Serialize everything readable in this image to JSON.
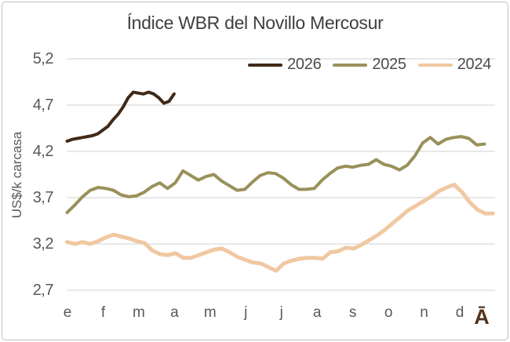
{
  "chart_data": {
    "type": "line",
    "title": "Índice WBR del Novillo Mercosur",
    "ylabel": "US$/k carcasa",
    "xlabel": "",
    "ylim": [
      2.7,
      5.2
    ],
    "y_ticks": [
      "5,2",
      "4,7",
      "4,2",
      "3,7",
      "3,2",
      "2,7"
    ],
    "y_tick_values": [
      5.2,
      4.7,
      4.2,
      3.7,
      3.2,
      2.7
    ],
    "x_tick_labels": [
      "e",
      "f",
      "m",
      "a",
      "m",
      "j",
      "j",
      "a",
      "s",
      "o",
      "n",
      "d"
    ],
    "grid": "horizontal",
    "legend_position": "top-right",
    "series": [
      {
        "name": "2026",
        "color": "#402a18",
        "span": [
          0,
          0.25
        ],
        "values": [
          4.31,
          4.33,
          4.34,
          4.35,
          4.36,
          4.37,
          4.39,
          4.43,
          4.47,
          4.54,
          4.6,
          4.68,
          4.78,
          4.84,
          4.83,
          4.82,
          4.84,
          4.82,
          4.78,
          4.72,
          4.74,
          4.82
        ]
      },
      {
        "name": "2025",
        "color": "#99915a",
        "span": [
          0,
          0.975
        ],
        "values": [
          3.54,
          3.62,
          3.71,
          3.78,
          3.81,
          3.8,
          3.78,
          3.73,
          3.71,
          3.72,
          3.76,
          3.82,
          3.86,
          3.8,
          3.86,
          3.99,
          3.94,
          3.89,
          3.93,
          3.95,
          3.88,
          3.83,
          3.78,
          3.79,
          3.87,
          3.94,
          3.97,
          3.96,
          3.91,
          3.84,
          3.79,
          3.79,
          3.8,
          3.89,
          3.96,
          4.02,
          4.04,
          4.03,
          4.05,
          4.06,
          4.11,
          4.06,
          4.04,
          4.0,
          4.05,
          4.15,
          4.29,
          4.35,
          4.28,
          4.33,
          4.35,
          4.36,
          4.34,
          4.27,
          4.28
        ]
      },
      {
        "name": "2024",
        "color": "#f0c8a2",
        "span": [
          0,
          0.995
        ],
        "values": [
          3.22,
          3.2,
          3.22,
          3.2,
          3.23,
          3.27,
          3.3,
          3.28,
          3.26,
          3.23,
          3.21,
          3.13,
          3.09,
          3.08,
          3.1,
          3.05,
          3.05,
          3.08,
          3.11,
          3.14,
          3.15,
          3.11,
          3.06,
          3.03,
          3.0,
          2.99,
          2.95,
          2.91,
          2.99,
          3.02,
          3.04,
          3.05,
          3.05,
          3.04,
          3.11,
          3.12,
          3.16,
          3.15,
          3.19,
          3.24,
          3.29,
          3.35,
          3.42,
          3.49,
          3.56,
          3.61,
          3.66,
          3.71,
          3.77,
          3.81,
          3.84,
          3.76,
          3.65,
          3.57,
          3.53,
          3.53
        ]
      }
    ],
    "watermark": "Ā"
  },
  "colors": {
    "grid": "#d9d9d9",
    "axis_text": "#595959",
    "title_text": "#3f3f3f",
    "frame_border": "#c4c1be"
  }
}
